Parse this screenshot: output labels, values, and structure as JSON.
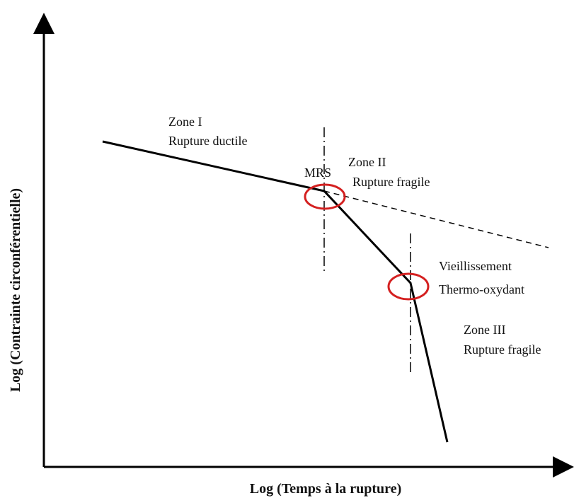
{
  "axes": {
    "x_label": "Log (Temps à la rupture)",
    "y_label": "Log (Contrainte circonférentielle)"
  },
  "zones": [
    {
      "name": "Zone I",
      "description": "Rupture ductile"
    },
    {
      "name": "Zone II",
      "description": "Rupture fragile"
    },
    {
      "name": "Zone III",
      "description": "Rupture fragile"
    }
  ],
  "annotations": {
    "mrs": "MRS",
    "aging": [
      "Vieillissement",
      "Thermo-oxydant"
    ]
  }
}
